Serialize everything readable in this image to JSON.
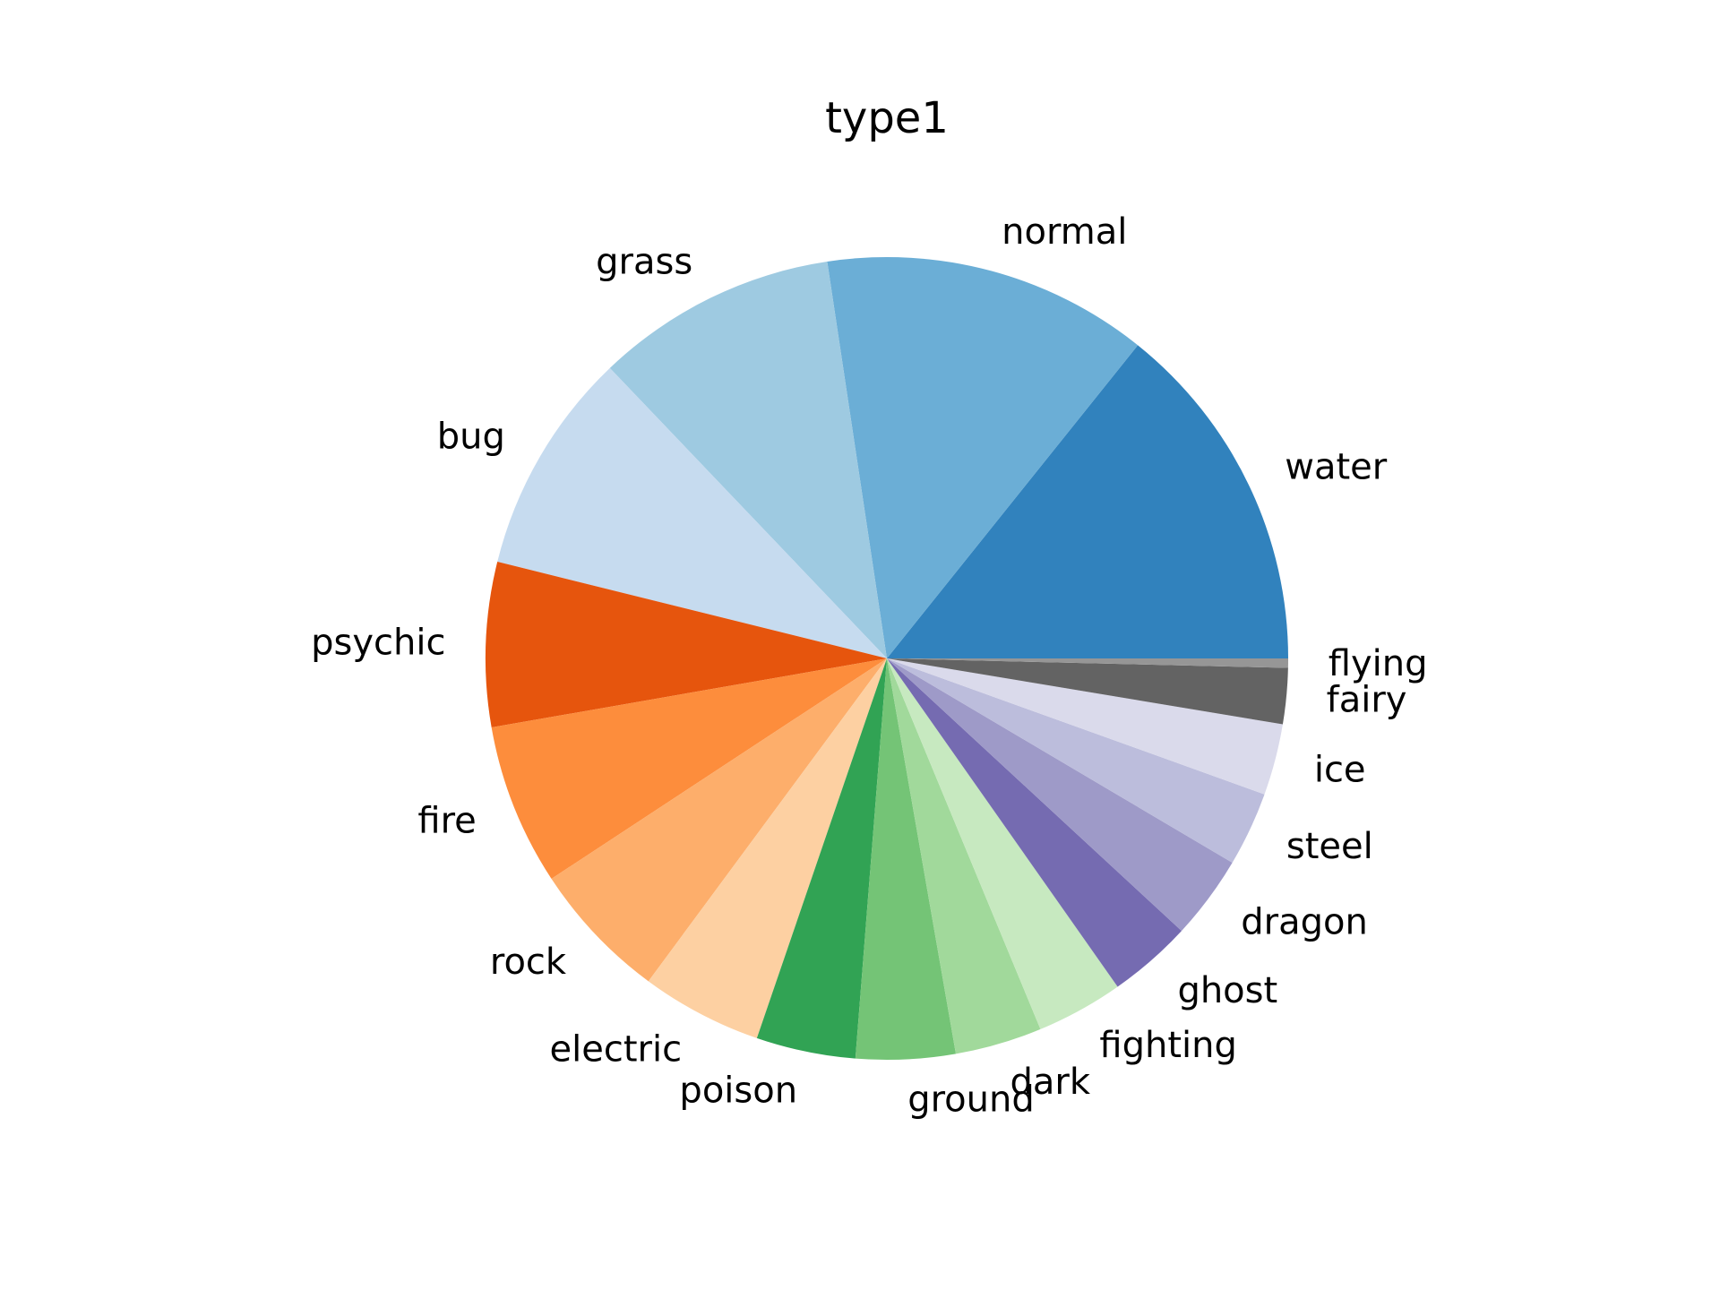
{
  "chart_data": {
    "type": "pie",
    "title": "type1",
    "start_angle_deg": 0,
    "direction": "counterclockwise",
    "labels": [
      "water",
      "normal",
      "grass",
      "bug",
      "psychic",
      "fire",
      "rock",
      "electric",
      "poison",
      "ground",
      "dark",
      "fighting",
      "ghost",
      "dragon",
      "steel",
      "ice",
      "fairy",
      "flying"
    ],
    "values": [
      114,
      105,
      78,
      72,
      53,
      52,
      45,
      39,
      32,
      32,
      28,
      28,
      27,
      27,
      24,
      23,
      18,
      3
    ],
    "colors": [
      "#3182bd",
      "#6baed6",
      "#9ecae1",
      "#c6dbef",
      "#e6550d",
      "#fd8d3c",
      "#fdae6b",
      "#fdd0a2",
      "#31a354",
      "#74c476",
      "#a1d99b",
      "#c7e9c0",
      "#756bb1",
      "#9e9ac8",
      "#bcbddc",
      "#dadaeb",
      "#636363",
      "#969696"
    ]
  }
}
